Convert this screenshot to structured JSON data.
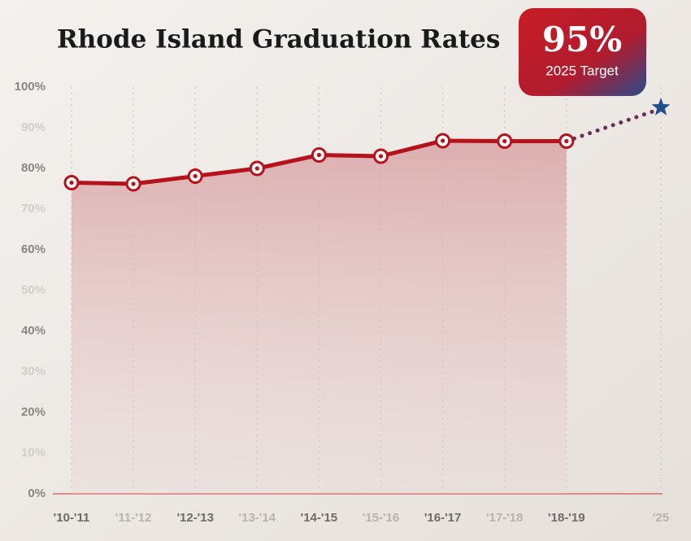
{
  "chart_data": {
    "type": "line",
    "title": "Rhode Island Graduation Rates",
    "categories": [
      "'10-'11",
      "'11-'12",
      "'12-'13",
      "'13-'14",
      "'14-'15",
      "'15-'16",
      "'16-'17",
      "'17-'18",
      "'18-'19",
      "'25"
    ],
    "values": [
      76.5,
      76.2,
      78.1,
      80,
      83.3,
      83,
      86.8,
      86.7,
      86.7,
      null
    ],
    "color": "#b5121b",
    "target": {
      "value": 95,
      "label": "95%",
      "caption": "2025 Target",
      "color": "#1f4e8c"
    },
    "ylim": [
      0,
      100
    ],
    "yticks": [
      {
        "value": 0,
        "label": "0%"
      },
      {
        "value": 10,
        "label": "10%"
      },
      {
        "value": 20,
        "label": "20%"
      },
      {
        "value": 30,
        "label": "30%"
      },
      {
        "value": 40,
        "label": "40%"
      },
      {
        "value": 50,
        "label": "50%"
      },
      {
        "value": 60,
        "label": "60%"
      },
      {
        "value": 70,
        "label": "70%"
      },
      {
        "value": 80,
        "label": "80%"
      },
      {
        "value": 90,
        "label": "90%"
      },
      {
        "value": 100,
        "label": "100%"
      }
    ],
    "grid": true
  }
}
